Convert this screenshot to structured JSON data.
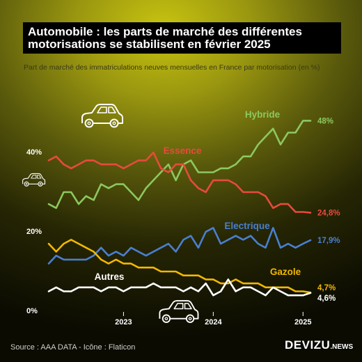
{
  "title_line1": "Automobile : les parts de marché des différentes",
  "title_line2": "motorisations se stabilisent en février 2025",
  "subtitle": "Part de marché des immatriculations neuves mensuelles en France par motorisation (en %)",
  "source": "Source : AAA DATA - Icône : Flaticon",
  "brand": {
    "name": "DEVIZU",
    "suffix": ".NEWS"
  },
  "chart_data": {
    "type": "line",
    "x": [
      "2022-03",
      "2022-04",
      "2022-05",
      "2022-06",
      "2022-07",
      "2022-08",
      "2022-09",
      "2022-10",
      "2022-11",
      "2022-12",
      "2023-01",
      "2023-02",
      "2023-03",
      "2023-04",
      "2023-05",
      "2023-06",
      "2023-07",
      "2023-08",
      "2023-09",
      "2023-10",
      "2023-11",
      "2023-12",
      "2024-01",
      "2024-02",
      "2024-03",
      "2024-04",
      "2024-05",
      "2024-06",
      "2024-07",
      "2024-08",
      "2024-09",
      "2024-10",
      "2024-11",
      "2024-12",
      "2025-01",
      "2025-02"
    ],
    "x_ticks": [
      "2023",
      "2024",
      "2025"
    ],
    "y_ticks": [
      "0%",
      "20%",
      "40%"
    ],
    "ylim": [
      0,
      52
    ],
    "grid": false,
    "series": [
      {
        "name": "Hybride",
        "color": "#8cc860",
        "end_label": "48%",
        "values": [
          27,
          26,
          30,
          30,
          27,
          29,
          28,
          32,
          31,
          32,
          32,
          30,
          28,
          31,
          33,
          35,
          37,
          33,
          37,
          38,
          35,
          35,
          35,
          36,
          36,
          37,
          39,
          39,
          42,
          44,
          46,
          42,
          45,
          45,
          48,
          48
        ]
      },
      {
        "name": "Essence",
        "color": "#e84a3c",
        "end_label": "24,8%",
        "values": [
          38,
          39,
          37,
          36,
          37,
          38,
          38,
          37,
          37,
          37,
          36,
          37,
          38,
          38,
          40,
          36,
          35,
          37,
          37,
          33,
          31,
          30,
          33,
          33,
          33,
          32,
          30,
          30,
          30,
          29,
          26,
          27,
          27,
          25,
          25,
          24.8
        ]
      },
      {
        "name": "Electrique",
        "color": "#4a7fd0",
        "end_label": "17,9%",
        "values": [
          12,
          14,
          13,
          13,
          13,
          13,
          14,
          16,
          14,
          15,
          14,
          16,
          15,
          14,
          15,
          16,
          17,
          15,
          18,
          19,
          16,
          20,
          21,
          17,
          18,
          19,
          18,
          19,
          17,
          16,
          21,
          16,
          17,
          16,
          17,
          17.9
        ]
      },
      {
        "name": "Gazole",
        "color": "#f2b800",
        "end_label": "4,7%",
        "values": [
          17,
          15,
          17,
          18,
          17,
          16,
          15,
          13,
          12,
          13,
          12,
          12,
          11,
          11,
          11,
          10,
          10,
          10,
          9,
          9,
          9,
          8,
          8,
          7,
          7,
          8,
          7,
          7,
          7,
          6,
          6,
          6,
          6,
          5,
          5,
          4.7
        ]
      },
      {
        "name": "Autres",
        "color": "#ffffff",
        "end_label": "4,6%",
        "values": [
          5,
          6,
          5,
          5,
          6,
          6,
          6,
          5,
          6,
          6,
          5,
          6,
          6,
          6,
          7,
          6,
          6,
          6,
          5,
          6,
          5,
          7,
          4,
          5,
          8,
          5,
          6,
          6,
          5,
          4,
          6,
          5,
          4,
          4,
          4,
          4.6
        ]
      }
    ]
  },
  "icons": [
    "car-icon",
    "car-icon",
    "car-icon"
  ]
}
